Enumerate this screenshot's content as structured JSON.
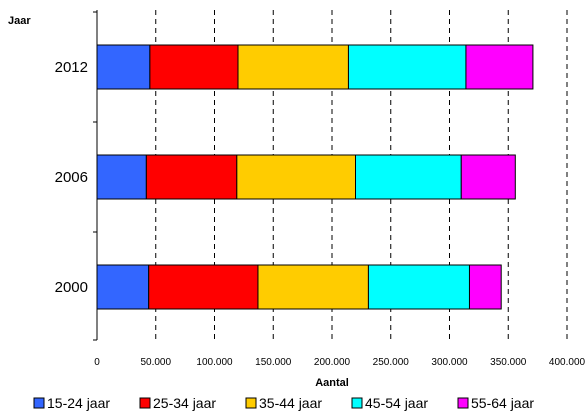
{
  "chart_data": {
    "type": "bar",
    "orientation": "horizontal",
    "stacked": true,
    "title": "",
    "ylabel": "Jaar",
    "xlabel": "Aantal",
    "categories": [
      "2012",
      "2006",
      "2000"
    ],
    "xlim": [
      0,
      400000
    ],
    "xticks": [
      0,
      50000,
      100000,
      150000,
      200000,
      250000,
      300000,
      350000,
      400000
    ],
    "xtick_labels": [
      "0",
      "50.000",
      "100.000",
      "150.000",
      "200.000",
      "250.000",
      "300.000",
      "350.000",
      "400.000"
    ],
    "grid": "vertical dashed",
    "legend_position": "bottom",
    "series": [
      {
        "name": "15-24 jaar",
        "color": "#3366ff",
        "values": [
          45000,
          42000,
          44000
        ]
      },
      {
        "name": "25-34 jaar",
        "color": "#ff0000",
        "values": [
          75000,
          77000,
          93000
        ]
      },
      {
        "name": "35-44 jaar",
        "color": "#ffcc00",
        "values": [
          94000,
          101000,
          94000
        ]
      },
      {
        "name": "45-54 jaar",
        "color": "#00ffff",
        "values": [
          100000,
          90000,
          86000
        ]
      },
      {
        "name": "55-64 jaar",
        "color": "#ff00ff",
        "values": [
          57000,
          46000,
          27000
        ]
      }
    ]
  }
}
